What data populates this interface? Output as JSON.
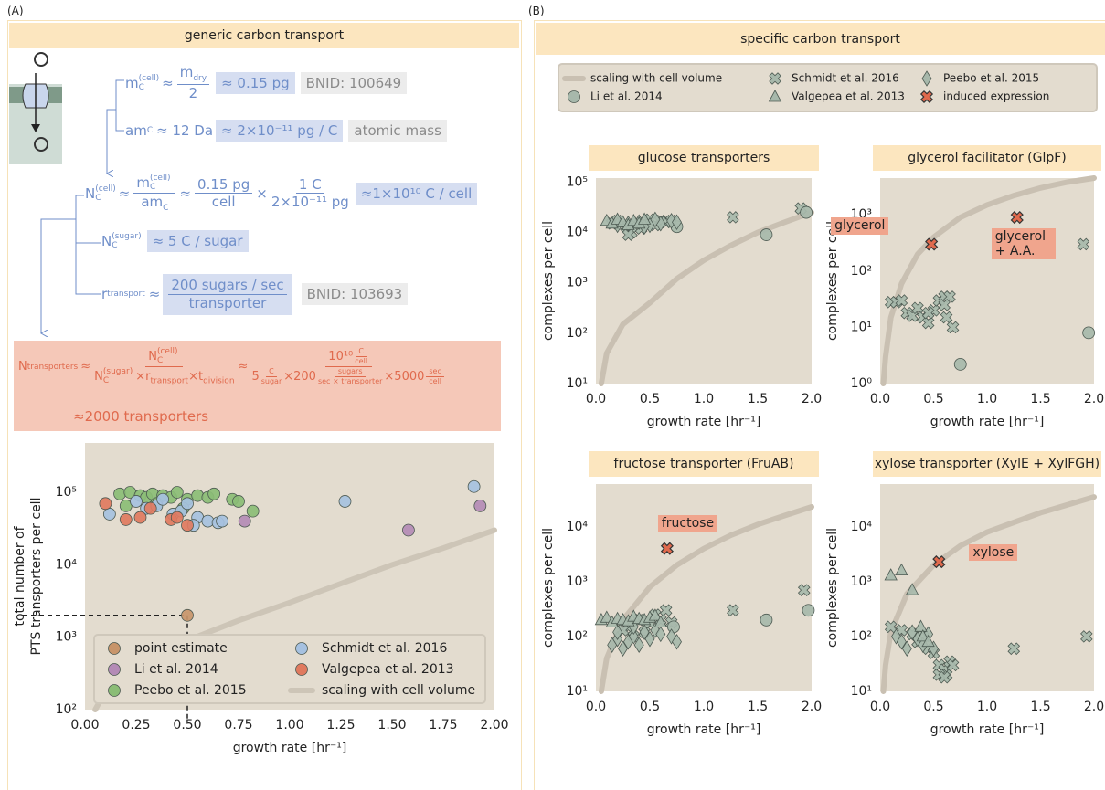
{
  "labels": {
    "panel_a": "(A)",
    "panel_b": "(B)",
    "title_a": "generic carbon transport",
    "title_b": "specific carbon transport"
  },
  "equations": {
    "mass": {
      "symbol": "m",
      "sub": "C",
      "sup": "(cell)",
      "op": "≈",
      "num": "m",
      "num_sub": "dry",
      "den": "2",
      "result": "≈ 0.15 pg",
      "source": "BNID: 100649"
    },
    "atomic": {
      "symbol": "am",
      "sub": "C",
      "expr": "≈ 12 Da",
      "result": "≈ 2×10⁻¹¹ pg / C",
      "source": "atomic mass"
    },
    "carbon": {
      "symbol": "N",
      "sub": "C",
      "sup": "(cell)",
      "op": "≈",
      "f1_num": "m",
      "f1_num_sub": "C",
      "f1_num_sup": "(cell)",
      "f1_den": "am",
      "f1_den_sub": "C",
      "op2": "≈",
      "f2_num": "0.15 pg",
      "f2_den": "cell",
      "times": "×",
      "f3_num": "1 C",
      "f3_den": "2×10⁻¹¹ pg",
      "result": "≈1×10¹⁰ C / cell"
    },
    "sugar": {
      "symbol": "N",
      "sub": "C",
      "sup": "(sugar)",
      "result": "≈ 5 C / sugar"
    },
    "rate": {
      "symbol": "r",
      "sub": "transport",
      "op": "≈",
      "num": "200 sugars / sec",
      "den": "transporter",
      "source": "BNID: 103693"
    },
    "final": {
      "symbol": "N",
      "sub": "transporters",
      "op": "≈",
      "num": "N",
      "num_sub": "C",
      "num_sup": "(cell)",
      "den_n": "N",
      "den_n_sub": "C",
      "den_n_sup": "(sugar)",
      "den_r": "×r",
      "den_r_sub": "transport",
      "den_t": "×t",
      "den_t_sub": "division",
      "op2": "≈",
      "num2": "10¹⁰",
      "num2_unit_num": "C",
      "num2_unit_den": "cell",
      "den2_a": "5",
      "den2_a_num": "C",
      "den2_a_den": "sugar",
      "den2_b": "×200",
      "den2_b_num": "sugars",
      "den2_b_den": "sec × transporter",
      "den2_c": "×5000",
      "den2_c_num": "sec",
      "den2_c_den": "cell",
      "result": "≈2000 transporters"
    }
  },
  "chart_data": [
    {
      "type": "scatter",
      "xlabel": "growth rate [hr⁻¹]",
      "ylabel": [
        "total number of",
        "PTS transporters per cell"
      ],
      "log_y": true,
      "background": "#e3dccf",
      "legend": "lower center",
      "guides": true,
      "xlim": [
        0,
        2
      ],
      "xticks": [
        {
          "value": 0,
          "label": "0.00"
        },
        0.25,
        {
          "value": 0.5,
          "label": "0.50"
        },
        0.75,
        {
          "value": 1,
          "label": "1.00"
        },
        1.25,
        {
          "value": 1.5,
          "label": "1.50"
        },
        1.75,
        {
          "value": 2,
          "label": "2.00"
        }
      ],
      "ylim": [
        100,
        480000
      ],
      "yticks": [
        {
          "value": 100,
          "label": "10²"
        },
        {
          "value": 1000,
          "label": "10³"
        },
        {
          "value": 10000,
          "label": "10⁴"
        },
        {
          "value": 100000,
          "label": "10⁵"
        }
      ],
      "series": [
        {
          "name": "point estimate",
          "color": "#c8956b",
          "marker": "o",
          "x": [
            0.5
          ],
          "values": [
            2000
          ]
        },
        {
          "name": "Li et al. 2014",
          "color": "#b48bb6",
          "marker": "o",
          "x": [
            0.78,
            1.58,
            1.93
          ],
          "values": [
            40000,
            30000,
            65000
          ]
        },
        {
          "name": "Peebo et al. 2015",
          "color": "#8bbd76",
          "marker": "o",
          "x": [
            0.17,
            0.22,
            0.27,
            0.3,
            0.33,
            0.38,
            0.42,
            0.45,
            0.5,
            0.55,
            0.6,
            0.63,
            0.72,
            0.75,
            0.82,
            0.2,
            0.35,
            0.48
          ],
          "values": [
            95000,
            100000,
            90000,
            85000,
            95000,
            90000,
            85000,
            100000,
            80000,
            90000,
            85000,
            95000,
            80000,
            75000,
            55000,
            65000,
            70000,
            60000
          ]
        },
        {
          "name": "Schmidt et al. 2016",
          "color": "#a6c1e0",
          "marker": "o",
          "x": [
            0.12,
            0.25,
            0.3,
            0.35,
            0.43,
            0.47,
            0.5,
            0.55,
            0.6,
            0.65,
            0.67,
            0.53,
            0.38,
            1.27,
            1.9
          ],
          "values": [
            50000,
            75000,
            60000,
            65000,
            50000,
            55000,
            70000,
            45000,
            40000,
            38000,
            40000,
            35000,
            80000,
            75000,
            120000
          ]
        },
        {
          "name": "Valgepea et al. 2013",
          "color": "#e07a5f",
          "marker": "o",
          "x": [
            0.1,
            0.2,
            0.27,
            0.32,
            0.42,
            0.45,
            0.5
          ],
          "values": [
            70000,
            42000,
            45000,
            60000,
            42000,
            45000,
            35000
          ]
        },
        {
          "name": "scaling with cell volume",
          "color": "#cdc5b7",
          "marker": "line",
          "x": [
            0.05,
            0.1,
            0.25,
            0.5,
            0.75,
            1,
            1.25,
            1.5,
            1.75,
            2
          ],
          "values": [
            100,
            180,
            400,
            900,
            1700,
            3000,
            5500,
            10000,
            17000,
            30000
          ]
        }
      ]
    },
    {
      "type": "scatter",
      "title": "glucose transporters",
      "xlabel": "growth rate [hr⁻¹]",
      "ylabel": "complexes per cell",
      "log_y": true,
      "background": "#e3dccf",
      "xlim": [
        0,
        2
      ],
      "xticks": [
        {
          "value": 0,
          "label": "0.0"
        },
        0.5,
        {
          "value": 1,
          "label": "1.0"
        },
        1.5,
        {
          "value": 2,
          "label": "2.0"
        }
      ],
      "ylim": [
        10,
        120000
      ],
      "yticks": [
        {
          "value": 10,
          "label": "10¹"
        },
        {
          "value": 100,
          "label": "10²"
        },
        {
          "value": 1000,
          "label": "10³"
        },
        {
          "value": 10000,
          "label": "10⁴"
        },
        {
          "value": 100000,
          "label": "10⁵"
        }
      ],
      "series": [
        {
          "name": "scaling with cell volume",
          "color": "#c9c0b2",
          "marker": "line",
          "x": [
            0.05,
            0.1,
            0.25,
            0.5,
            0.75,
            1,
            1.25,
            1.5,
            1.75,
            2
          ],
          "values": [
            10,
            40,
            150,
            400,
            1200,
            2800,
            5500,
            10000,
            16000,
            25000
          ]
        },
        {
          "name": "Schmidt et al. 2016",
          "color": "#a7b8ab",
          "marker": "x",
          "x": [
            0.15,
            0.2,
            0.28,
            0.33,
            0.38,
            0.45,
            0.5,
            0.55,
            0.6,
            0.65,
            0.7,
            0.3,
            0.42,
            1.27,
            1.9
          ],
          "values": [
            15000,
            17000,
            13000,
            10000,
            16000,
            15000,
            18000,
            14000,
            17000,
            16000,
            17000,
            9000,
            12000,
            20000,
            30000
          ]
        },
        {
          "name": "Li et al. 2014",
          "color": "#a7b8ab",
          "marker": "o",
          "x": [
            0.75,
            1.58,
            1.95
          ],
          "values": [
            13000,
            9000,
            25000
          ]
        },
        {
          "name": "Peebo et al. 2015",
          "color": "#a7b8ab",
          "marker": "d",
          "x": [
            0.2,
            0.3,
            0.4,
            0.5,
            0.6,
            0.7,
            0.75,
            0.45,
            0.55
          ],
          "values": [
            14000,
            15000,
            16000,
            14000,
            15000,
            17000,
            16000,
            13000,
            18000
          ]
        },
        {
          "name": "Valgepea et al. 2013",
          "color": "#a7b8ab",
          "marker": "^",
          "x": [
            0.1,
            0.15,
            0.2,
            0.25,
            0.3,
            0.35,
            0.4,
            0.45
          ],
          "values": [
            17000,
            15000,
            18000,
            16000,
            14000,
            17000,
            15000,
            18000
          ]
        }
      ]
    },
    {
      "type": "scatter",
      "title": "glycerol facilitator (GlpF)",
      "xlabel": "growth rate [hr⁻¹]",
      "ylabel": "complexes per cell",
      "log_y": true,
      "background": "#e3dccf",
      "xlim": [
        0,
        2
      ],
      "xticks": [
        {
          "value": 0,
          "label": "0.0"
        },
        0.5,
        {
          "value": 1,
          "label": "1.0"
        },
        1.5,
        {
          "value": 2,
          "label": "2.0"
        }
      ],
      "ylim": [
        1,
        4500
      ],
      "yticks": [
        {
          "value": 1,
          "label": "10⁰"
        },
        {
          "value": 10,
          "label": "10¹"
        },
        {
          "value": 100,
          "label": "10²"
        },
        {
          "value": 1000,
          "label": "10³"
        }
      ],
      "series": [
        {
          "name": "scaling with cell volume",
          "color": "#c9c0b2",
          "marker": "line",
          "x": [
            0.03,
            0.05,
            0.1,
            0.2,
            0.35,
            0.5,
            0.75,
            1,
            1.25,
            1.5,
            1.75,
            2
          ],
          "values": [
            1,
            3,
            15,
            60,
            200,
            400,
            900,
            1500,
            2200,
            3000,
            3800,
            4500
          ]
        },
        {
          "name": "Schmidt et al. 2016",
          "color": "#a7b8ab",
          "marker": "x",
          "x": [
            0.1,
            0.15,
            0.2,
            0.25,
            0.3,
            0.35,
            0.4,
            0.45,
            0.5,
            0.55,
            0.6,
            0.62,
            0.65,
            0.68,
            0.6,
            0.45,
            1.9
          ],
          "values": [
            28,
            28,
            30,
            18,
            16,
            22,
            15,
            12,
            20,
            30,
            35,
            15,
            35,
            10,
            25,
            18,
            300
          ]
        },
        {
          "name": "Li et al. 2014",
          "color": "#a7b8ab",
          "marker": "o",
          "x": [
            0.75,
            1.95
          ],
          "values": [
            2.2,
            8
          ]
        },
        {
          "name": "induced expression",
          "color": "#e06a4d",
          "marker": "X",
          "x": [
            0.48,
            1.28
          ],
          "values": [
            300,
            900
          ]
        }
      ],
      "annotations": [
        "glycerol",
        "glycerol + A.A."
      ]
    },
    {
      "type": "scatter",
      "title": "fructose transporter (FruAB)",
      "xlabel": "growth rate [hr⁻¹]",
      "ylabel": "complexes per cell",
      "log_y": true,
      "background": "#e3dccf",
      "xlim": [
        0,
        2
      ],
      "xticks": [
        {
          "value": 0,
          "label": "0.0"
        },
        0.5,
        {
          "value": 1,
          "label": "1.0"
        },
        1.5,
        {
          "value": 2,
          "label": "2.0"
        }
      ],
      "ylim": [
        10,
        60000
      ],
      "yticks": [
        {
          "value": 10,
          "label": "10¹"
        },
        {
          "value": 100,
          "label": "10²"
        },
        {
          "value": 1000,
          "label": "10³"
        },
        {
          "value": 10000,
          "label": "10⁴"
        }
      ],
      "series": [
        {
          "name": "scaling with cell volume",
          "color": "#c9c0b2",
          "marker": "line",
          "x": [
            0.05,
            0.1,
            0.25,
            0.5,
            0.75,
            1,
            1.25,
            1.5,
            1.75,
            2
          ],
          "values": [
            10,
            40,
            200,
            800,
            2000,
            4000,
            7000,
            11000,
            16000,
            23000
          ]
        },
        {
          "name": "Schmidt et al. 2016",
          "color": "#a7b8ab",
          "marker": "x",
          "x": [
            0.3,
            0.4,
            0.45,
            0.5,
            0.55,
            0.6,
            0.65,
            0.35,
            0.25,
            0.7,
            1.27,
            1.93
          ],
          "values": [
            150,
            200,
            120,
            180,
            250,
            200,
            300,
            100,
            130,
            180,
            300,
            700
          ]
        },
        {
          "name": "Li et al. 2014",
          "color": "#a7b8ab",
          "marker": "o",
          "x": [
            0.72,
            1.58,
            1.97
          ],
          "values": [
            150,
            200,
            300
          ]
        },
        {
          "name": "Peebo et al. 2015",
          "color": "#a7b8ab",
          "marker": "d",
          "x": [
            0.15,
            0.2,
            0.25,
            0.3,
            0.35,
            0.4,
            0.45,
            0.5,
            0.55,
            0.6,
            0.7,
            0.75,
            0.2,
            0.35
          ],
          "values": [
            70,
            90,
            60,
            80,
            100,
            70,
            120,
            90,
            130,
            110,
            100,
            80,
            120,
            150
          ]
        },
        {
          "name": "Valgepea et al. 2013",
          "color": "#a7b8ab",
          "marker": "^",
          "x": [
            0.05,
            0.1,
            0.15,
            0.2,
            0.25,
            0.3,
            0.35,
            0.4,
            0.45,
            0.5,
            0.55,
            0.6
          ],
          "values": [
            200,
            220,
            180,
            210,
            200,
            190,
            230,
            210,
            200,
            220,
            240,
            180
          ]
        },
        {
          "name": "induced expression",
          "color": "#e06a4d",
          "marker": "X",
          "x": [
            0.66
          ],
          "values": [
            4000
          ]
        }
      ],
      "annotations": [
        "fructose"
      ]
    },
    {
      "type": "scatter",
      "title": "xylose transporter (XylE + XylFGH)",
      "xlabel": "growth rate [hr⁻¹]",
      "ylabel": "complexes per cell",
      "log_y": true,
      "background": "#e3dccf",
      "xlim": [
        0,
        2
      ],
      "xticks": [
        {
          "value": 0,
          "label": "0.0"
        },
        0.5,
        {
          "value": 1,
          "label": "1.0"
        },
        1.5,
        {
          "value": 2,
          "label": "2.0"
        }
      ],
      "ylim": [
        10,
        60000
      ],
      "yticks": [
        {
          "value": 10,
          "label": "10¹"
        },
        {
          "value": 100,
          "label": "10²"
        },
        {
          "value": 1000,
          "label": "10³"
        },
        {
          "value": 10000,
          "label": "10⁴"
        }
      ],
      "series": [
        {
          "name": "scaling with cell volume",
          "color": "#c9c0b2",
          "marker": "line",
          "x": [
            0.03,
            0.05,
            0.1,
            0.25,
            0.5,
            0.75,
            1,
            1.25,
            1.5,
            1.75,
            2
          ],
          "values": [
            10,
            30,
            120,
            600,
            2000,
            4500,
            8000,
            12000,
            18000,
            25000,
            35000
          ]
        },
        {
          "name": "Schmidt et al. 2016",
          "color": "#a7b8ab",
          "marker": "x",
          "x": [
            0.1,
            0.2,
            0.3,
            0.35,
            0.4,
            0.45,
            0.5,
            0.55,
            0.6,
            0.62,
            0.65,
            0.68,
            0.55,
            0.6,
            1.25,
            1.93
          ],
          "values": [
            150,
            130,
            110,
            80,
            100,
            60,
            50,
            30,
            25,
            20,
            35,
            30,
            20,
            18,
            60,
            100
          ]
        },
        {
          "name": "Peebo et al. 2015",
          "color": "#a7b8ab",
          "marker": "d",
          "x": [
            0.15,
            0.2,
            0.25,
            0.3,
            0.35,
            0.4,
            0.45,
            0.5
          ],
          "values": [
            100,
            80,
            60,
            120,
            90,
            70,
            110,
            60
          ]
        },
        {
          "name": "Valgepea et al. 2013",
          "color": "#a7b8ab",
          "marker": "^",
          "x": [
            0.1,
            0.2,
            0.3,
            0.38,
            0.4,
            0.45
          ],
          "values": [
            1300,
            1600,
            700,
            150,
            100,
            80
          ]
        },
        {
          "name": "induced expression",
          "color": "#e06a4d",
          "marker": "X",
          "x": [
            0.55
          ],
          "values": [
            2300
          ]
        }
      ],
      "annotations": [
        "xylose"
      ]
    }
  ]
}
